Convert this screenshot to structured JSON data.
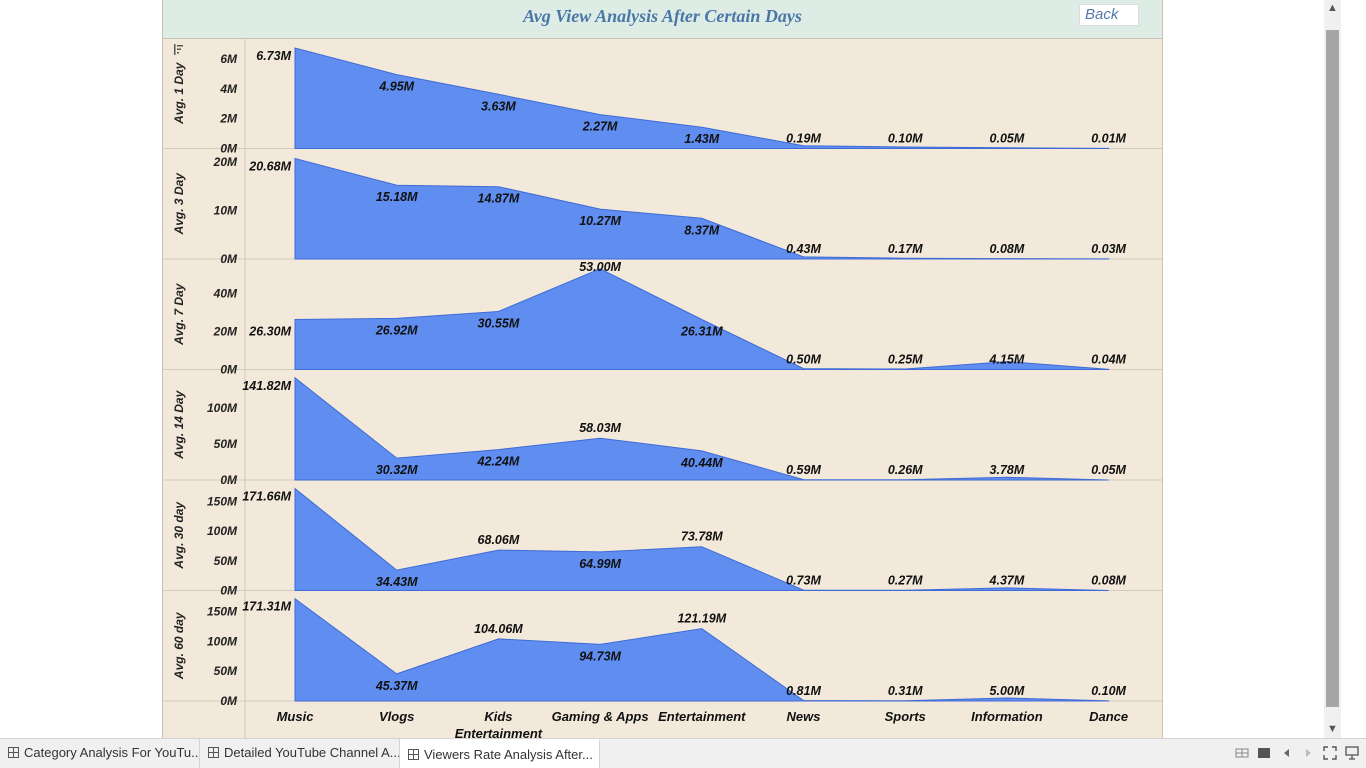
{
  "dashboard": {
    "title": "Avg View Analysis After Certain Days",
    "back_label": "Back"
  },
  "chart_data": {
    "type": "area",
    "title": "Avg View Analysis After Certain Days",
    "categories": [
      "Music",
      "Vlogs",
      "Kids\nEntertainment",
      "Gaming & Apps",
      "Entertainment",
      "News",
      "Sports",
      "Information",
      "Dance"
    ],
    "panels": [
      {
        "ylabel": "Avg. 1 Day",
        "ymax": 7,
        "ticks": [
          0,
          2,
          4,
          6
        ],
        "tick_labels": [
          "0M",
          "2M",
          "4M",
          "6M"
        ],
        "values": [
          6.73,
          4.95,
          3.63,
          2.27,
          1.43,
          0.19,
          0.1,
          0.05,
          0.01
        ],
        "labels": [
          "6.73M",
          "4.95M",
          "3.63M",
          "2.27M",
          "1.43M",
          "0.19M",
          "0.10M",
          "0.05M",
          "0.01M"
        ]
      },
      {
        "ylabel": "Avg. 3 Day",
        "ymax": 21.5,
        "ticks": [
          0,
          10,
          20
        ],
        "tick_labels": [
          "0M",
          "10M",
          "20M"
        ],
        "values": [
          20.68,
          15.18,
          14.87,
          10.27,
          8.37,
          0.43,
          0.17,
          0.08,
          0.03
        ],
        "labels": [
          "20.68M",
          "15.18M",
          "14.87M",
          "10.27M",
          "8.37M",
          "0.43M",
          "0.17M",
          "0.08M",
          "0.03M"
        ]
      },
      {
        "ylabel": "Avg. 7 Day",
        "ymax": 55,
        "ticks": [
          0,
          20,
          40
        ],
        "tick_labels": [
          "0M",
          "20M",
          "40M"
        ],
        "values": [
          26.3,
          26.92,
          30.55,
          53.0,
          26.31,
          0.5,
          0.25,
          4.15,
          0.04
        ],
        "labels": [
          "26.30M",
          "26.92M",
          "30.55M",
          "53.00M",
          "26.31M",
          "0.50M",
          "0.25M",
          "4.15M",
          "0.04M"
        ]
      },
      {
        "ylabel": "Avg. 14 Day",
        "ymax": 145,
        "ticks": [
          0,
          50,
          100
        ],
        "tick_labels": [
          "0M",
          "50M",
          "100M"
        ],
        "values": [
          141.82,
          30.32,
          42.24,
          58.03,
          40.44,
          0.59,
          0.26,
          3.78,
          0.05
        ],
        "labels": [
          "141.82M",
          "30.32M",
          "42.24M",
          "58.03M",
          "40.44M",
          "0.59M",
          "0.26M",
          "3.78M",
          "0.05M"
        ]
      },
      {
        "ylabel": "Avg. 30 day",
        "ymax": 176,
        "ticks": [
          0,
          50,
          100,
          150
        ],
        "tick_labels": [
          "0M",
          "50M",
          "100M",
          "150M"
        ],
        "values": [
          171.66,
          34.43,
          68.06,
          64.99,
          73.78,
          0.73,
          0.27,
          4.37,
          0.08
        ],
        "labels": [
          "171.66M",
          "34.43M",
          "68.06M",
          "64.99M",
          "73.78M",
          "0.73M",
          "0.27M",
          "4.37M",
          "0.08M"
        ]
      },
      {
        "ylabel": "Avg. 60 day",
        "ymax": 175,
        "ticks": [
          0,
          50,
          100,
          150
        ],
        "tick_labels": [
          "0M",
          "50M",
          "100M",
          "150M"
        ],
        "values": [
          171.31,
          45.37,
          104.06,
          94.73,
          121.19,
          0.81,
          0.31,
          5.0,
          0.1
        ],
        "labels": [
          "171.31M",
          "45.37M",
          "104.06M",
          "94.73M",
          "121.19M",
          "0.81M",
          "0.31M",
          "5.00M",
          "0.10M"
        ]
      }
    ],
    "grid": false,
    "colors": {
      "fill": "#5f8ef0",
      "line": "#3f6bd6",
      "background": "#f3e9da"
    }
  },
  "sheet_tabs": [
    {
      "label": "Category Analysis For YouTu...",
      "active": false
    },
    {
      "label": "Detailed YouTube Channel A...",
      "active": false
    },
    {
      "label": "Viewers Rate Analysis After...",
      "active": true
    }
  ],
  "toolbar_icons": [
    "grid-view-icon",
    "single-view-icon",
    "prev-sheet-icon",
    "next-sheet-icon",
    "fullscreen-icon",
    "present-icon"
  ]
}
